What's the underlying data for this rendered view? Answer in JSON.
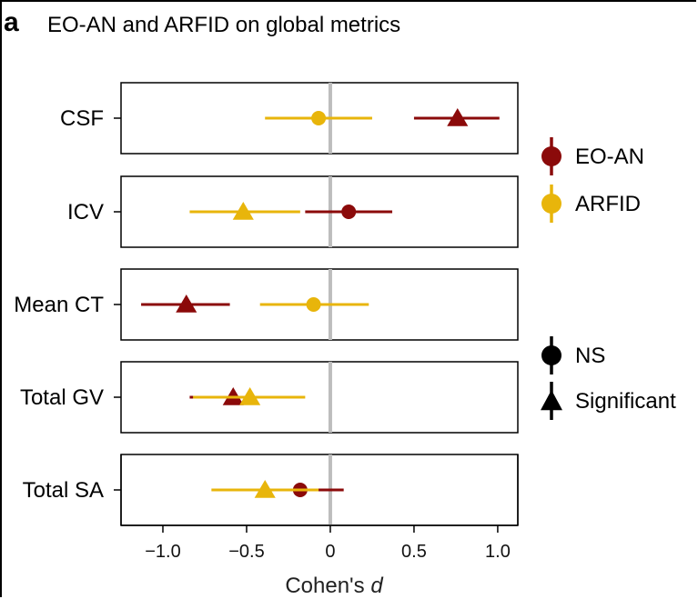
{
  "panel_letter": "a",
  "chart_data": {
    "type": "forest",
    "title": "EO-AN and ARFID on global metrics",
    "xlabel": "Cohen's",
    "xlabel_italic": "d",
    "xlim": [
      -1.25,
      1.12
    ],
    "xticks": [
      -1.0,
      -0.5,
      0,
      0.5,
      1.0
    ],
    "xtick_labels": [
      "−1.0",
      "−0.5",
      "0",
      "0.5",
      "1.0"
    ],
    "reference_line": 0,
    "categories": [
      "CSF",
      "ICV",
      "Mean CT",
      "Total GV",
      "Total SA"
    ],
    "series": [
      {
        "name": "EO-AN",
        "color": "#8b0a0a",
        "points": [
          {
            "category": "CSF",
            "d": 0.76,
            "ci": [
              0.5,
              1.01
            ],
            "significant": true
          },
          {
            "category": "ICV",
            "d": 0.11,
            "ci": [
              -0.15,
              0.37
            ],
            "significant": false
          },
          {
            "category": "Mean CT",
            "d": -0.86,
            "ci": [
              -1.13,
              -0.6
            ],
            "significant": true
          },
          {
            "category": "Total GV",
            "d": -0.58,
            "ci": [
              -0.84,
              -0.33
            ],
            "significant": true
          },
          {
            "category": "Total SA",
            "d": -0.18,
            "ci": [
              -0.46,
              0.08
            ],
            "significant": false
          }
        ]
      },
      {
        "name": "ARFID",
        "color": "#e8b50b",
        "points": [
          {
            "category": "CSF",
            "d": -0.07,
            "ci": [
              -0.39,
              0.25
            ],
            "significant": false
          },
          {
            "category": "ICV",
            "d": -0.52,
            "ci": [
              -0.84,
              -0.18
            ],
            "significant": true
          },
          {
            "category": "Mean CT",
            "d": -0.1,
            "ci": [
              -0.42,
              0.23
            ],
            "significant": false
          },
          {
            "category": "Total GV",
            "d": -0.48,
            "ci": [
              -0.82,
              -0.15
            ],
            "significant": true
          },
          {
            "category": "Total SA",
            "d": -0.39,
            "ci": [
              -0.71,
              -0.07
            ],
            "significant": true
          }
        ]
      }
    ],
    "legend": {
      "placement": "right",
      "groups": [
        {
          "label": "EO-AN",
          "color": "#8b0a0a",
          "marker": "circle"
        },
        {
          "label": "ARFID",
          "color": "#e8b50b",
          "marker": "circle"
        },
        {
          "label": "NS",
          "color": "#000000",
          "marker": "circle"
        },
        {
          "label": "Significant",
          "color": "#000000",
          "marker": "triangle"
        }
      ]
    }
  }
}
